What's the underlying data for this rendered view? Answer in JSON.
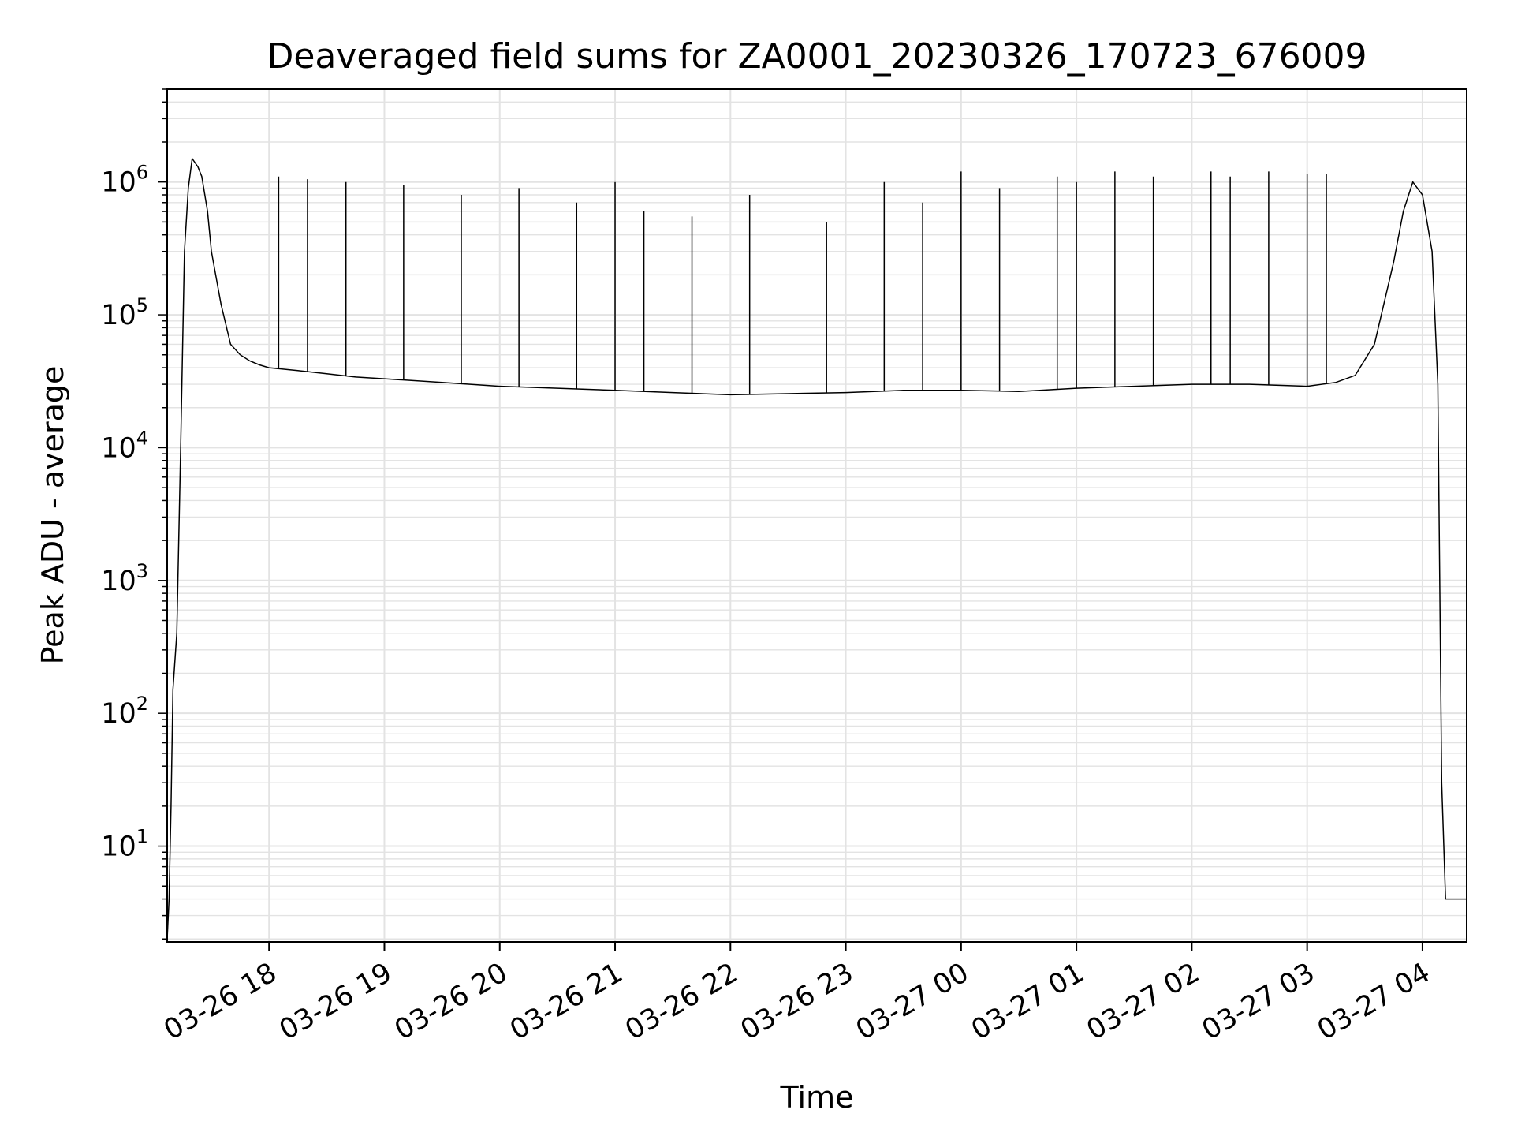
{
  "chart_data": {
    "type": "line",
    "title": "Deaveraged field sums for ZA0001_20230326_170723_676009",
    "xlabel": "Time",
    "ylabel": "Peak ADU - average",
    "yscale": "log",
    "grid": true,
    "line_color": "#000000",
    "grid_color": "#e3e3e3",
    "xlim": [
      "2023-03-26 17:07",
      "2023-03-27 04:23"
    ],
    "ylim": [
      1.9,
      5000000
    ],
    "x_ticks": [
      "03-26 18",
      "03-26 19",
      "03-26 20",
      "03-26 21",
      "03-26 22",
      "03-26 23",
      "03-27 00",
      "03-27 01",
      "03-27 02",
      "03-27 03",
      "03-27 04"
    ],
    "y_ticks": [
      {
        "base": "10",
        "exp": "1",
        "value": 10
      },
      {
        "base": "10",
        "exp": "2",
        "value": 100
      },
      {
        "base": "10",
        "exp": "3",
        "value": 1000
      },
      {
        "base": "10",
        "exp": "4",
        "value": 10000
      },
      {
        "base": "10",
        "exp": "5",
        "value": 100000
      },
      {
        "base": "10",
        "exp": "6",
        "value": 1000000
      }
    ],
    "series": [
      {
        "x": [
          "2023-03-26 17:07",
          "2023-03-26 17:08",
          "2023-03-26 17:09",
          "2023-03-26 17:10",
          "2023-03-26 17:12",
          "2023-03-26 17:14",
          "2023-03-26 17:16",
          "2023-03-26 17:18",
          "2023-03-26 17:20",
          "2023-03-26 17:23",
          "2023-03-26 17:25",
          "2023-03-26 17:28",
          "2023-03-26 17:30",
          "2023-03-26 17:35",
          "2023-03-26 17:40",
          "2023-03-26 17:45",
          "2023-03-26 17:50",
          "2023-03-26 17:55",
          "2023-03-26 18:00",
          "2023-03-26 18:15",
          "2023-03-26 18:30",
          "2023-03-26 18:45",
          "2023-03-26 19:00",
          "2023-03-26 19:30",
          "2023-03-26 20:00",
          "2023-03-26 20:30",
          "2023-03-26 21:00",
          "2023-03-26 21:30",
          "2023-03-26 22:00",
          "2023-03-26 22:30",
          "2023-03-26 23:00",
          "2023-03-26 23:30",
          "2023-03-27 00:00",
          "2023-03-27 00:30",
          "2023-03-27 01:00",
          "2023-03-27 01:30",
          "2023-03-27 02:00",
          "2023-03-27 02:30",
          "2023-03-27 03:00",
          "2023-03-27 03:15",
          "2023-03-27 03:25",
          "2023-03-27 03:35",
          "2023-03-27 03:45",
          "2023-03-27 03:50",
          "2023-03-27 03:55",
          "2023-03-27 04:00",
          "2023-03-27 04:05",
          "2023-03-27 04:08",
          "2023-03-27 04:10",
          "2023-03-27 04:12",
          "2023-03-27 04:23"
        ],
        "y": [
          2,
          4,
          20,
          150,
          400,
          10000,
          300000,
          900000,
          1500000,
          1300000,
          1100000,
          600000,
          300000,
          120000,
          60000,
          50000,
          45000,
          42000,
          40000,
          38000,
          36000,
          34000,
          33000,
          31000,
          29000,
          28000,
          27000,
          26000,
          25000,
          25500,
          26000,
          27000,
          27000,
          26500,
          28000,
          29000,
          30000,
          30000,
          29000,
          31000,
          35000,
          60000,
          250000,
          600000,
          1000000,
          800000,
          300000,
          30000,
          30,
          4,
          4
        ],
        "spikes": {
          "x": [
            "2023-03-26 18:05",
            "2023-03-26 18:20",
            "2023-03-26 18:40",
            "2023-03-26 19:10",
            "2023-03-26 19:40",
            "2023-03-26 20:10",
            "2023-03-26 20:40",
            "2023-03-26 21:00",
            "2023-03-26 21:15",
            "2023-03-26 21:40",
            "2023-03-26 22:10",
            "2023-03-26 22:50",
            "2023-03-26 23:20",
            "2023-03-26 23:40",
            "2023-03-27 00:00",
            "2023-03-27 00:20",
            "2023-03-27 00:50",
            "2023-03-27 01:00",
            "2023-03-27 01:20",
            "2023-03-27 01:40",
            "2023-03-27 02:10",
            "2023-03-27 02:20",
            "2023-03-27 02:40",
            "2023-03-27 03:00",
            "2023-03-27 03:10"
          ],
          "y": [
            1100000,
            1050000,
            1000000,
            950000,
            800000,
            900000,
            700000,
            1000000,
            600000,
            550000,
            800000,
            500000,
            1000000,
            700000,
            1200000,
            900000,
            1100000,
            1000000,
            1200000,
            1100000,
            1200000,
            1100000,
            1200000,
            1150000,
            1150000
          ]
        }
      }
    ]
  }
}
